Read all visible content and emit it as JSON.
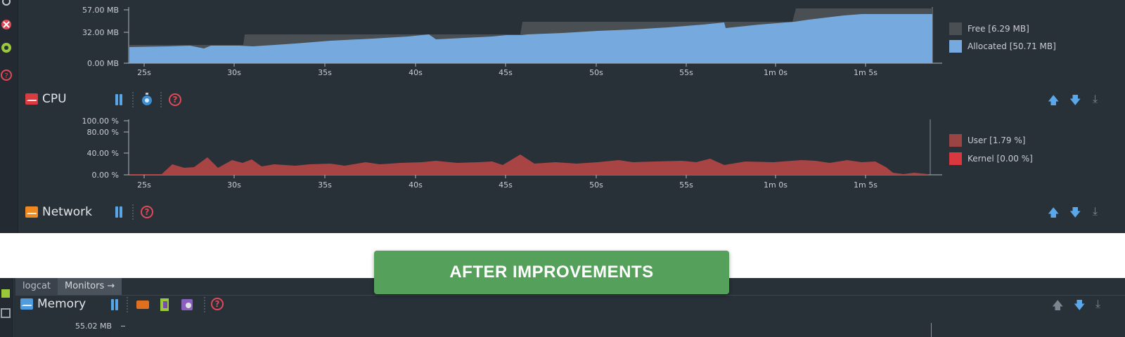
{
  "memory_panel": {
    "y_ticks": [
      "57.00 MB",
      "32.00 MB",
      "0.00 MB"
    ],
    "x_ticks": [
      "25s",
      "30s",
      "35s",
      "40s",
      "45s",
      "50s",
      "55s",
      "1m 0s",
      "1m 5s"
    ],
    "legend": [
      {
        "label": "Free [6.29 MB]",
        "color": "#4a4f54"
      },
      {
        "label": "Allocated [50.71 MB]",
        "color": "#76aadf"
      }
    ]
  },
  "cpu_panel": {
    "title": "CPU",
    "y_ticks": [
      "100.00 %",
      "80.00 %",
      "40.00 %",
      "0.00 %"
    ],
    "x_ticks": [
      "25s",
      "30s",
      "35s",
      "40s",
      "45s",
      "50s",
      "55s",
      "1m 0s",
      "1m 5s"
    ],
    "legend": [
      {
        "label": "User [1.79 %]",
        "color": "#9a4444"
      },
      {
        "label": "Kernel [0.00 %]",
        "color": "#d9383e"
      }
    ]
  },
  "network_panel": {
    "title": "Network"
  },
  "banner": {
    "text": "AFTER IMPROVEMENTS"
  },
  "bottom_panel": {
    "tabs": [
      "logcat",
      "Monitors →"
    ],
    "memory_title": "Memory",
    "memory_top_value": "55.02 MB"
  },
  "colors": {
    "panel_bg": "#283038",
    "allocated": "#76aadf",
    "free": "#4a4f54",
    "cpu_user": "#9a4444",
    "banner": "#55a05a"
  },
  "icons": {
    "pause": "pause-icon",
    "help": "help-icon",
    "move_up": "arrow-up-icon",
    "move_down": "arrow-down-icon",
    "minimize": "minimize-icon"
  }
}
